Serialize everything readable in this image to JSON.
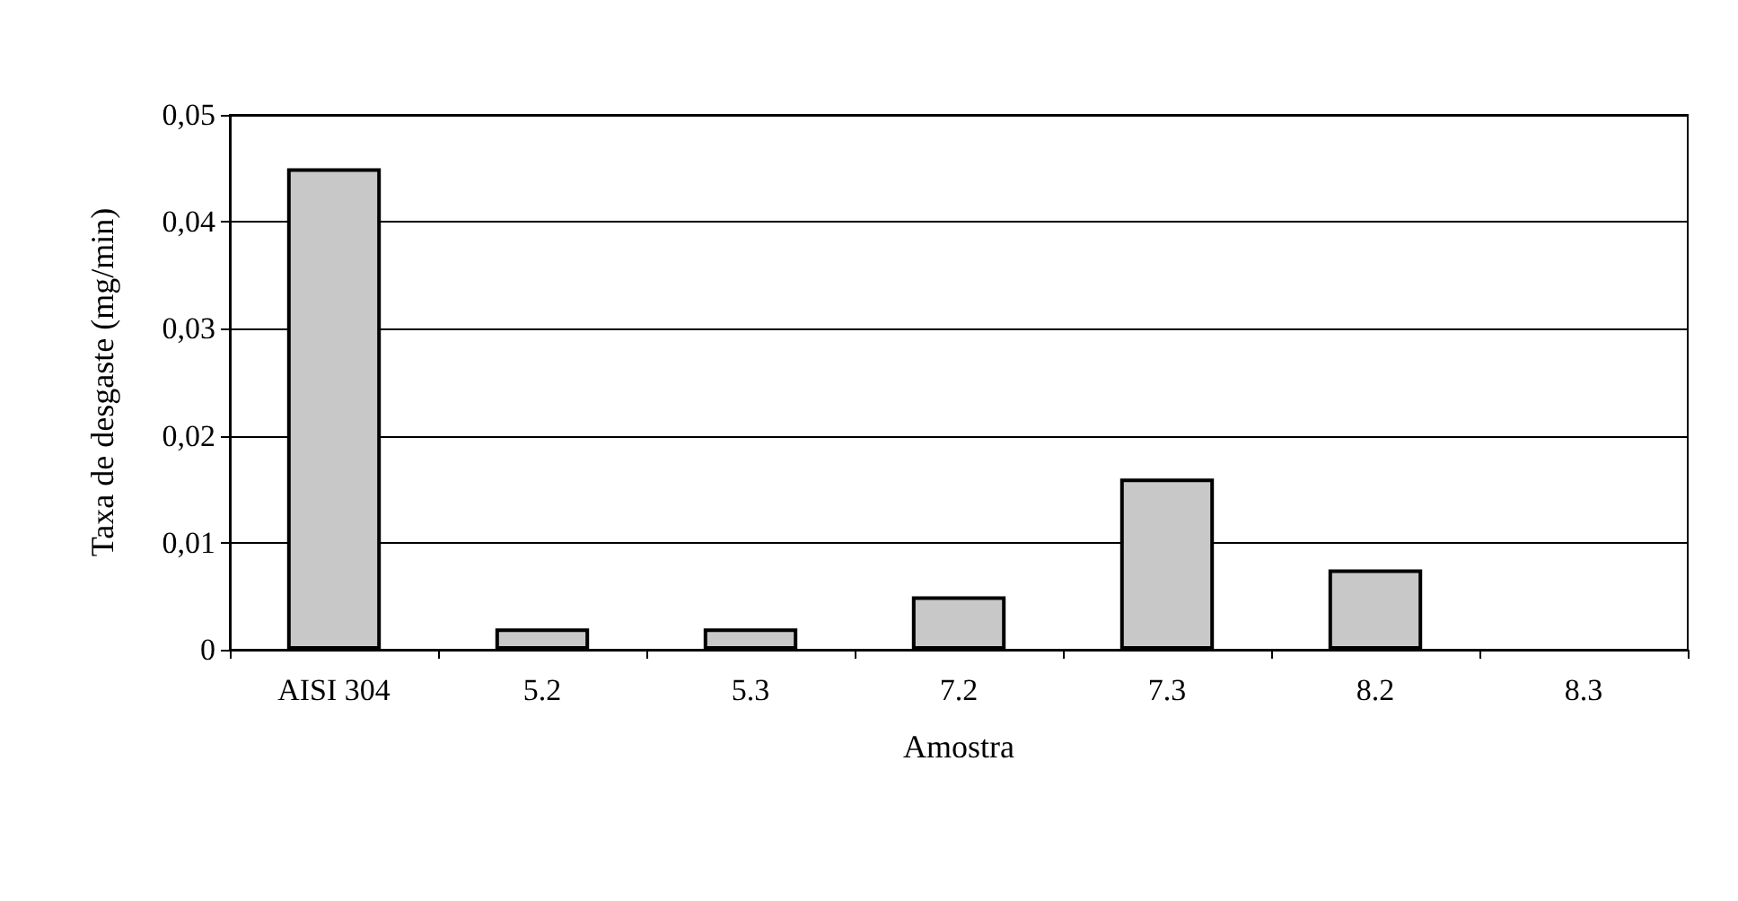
{
  "chart_data": {
    "type": "bar",
    "xlabel": "Amostra",
    "ylabel": "Taxa de desgaste (mg/min)",
    "categories": [
      "AISI 304",
      "5.2",
      "5.3",
      "7.2",
      "7.3",
      "8.2",
      "8.3"
    ],
    "values": [
      0.045,
      0.002,
      0.002,
      0.005,
      0.016,
      0.0075,
      null
    ],
    "color": "#c8c8c8",
    "ylim": [
      0,
      0.05
    ],
    "yticks": [
      {
        "value": 0,
        "label": "0"
      },
      {
        "value": 0.01,
        "label": "0,01"
      },
      {
        "value": 0.02,
        "label": "0,02"
      },
      {
        "value": 0.03,
        "label": "0,03"
      },
      {
        "value": 0.04,
        "label": "0,04"
      },
      {
        "value": 0.05,
        "label": "0,05"
      }
    ],
    "grid": "y"
  }
}
